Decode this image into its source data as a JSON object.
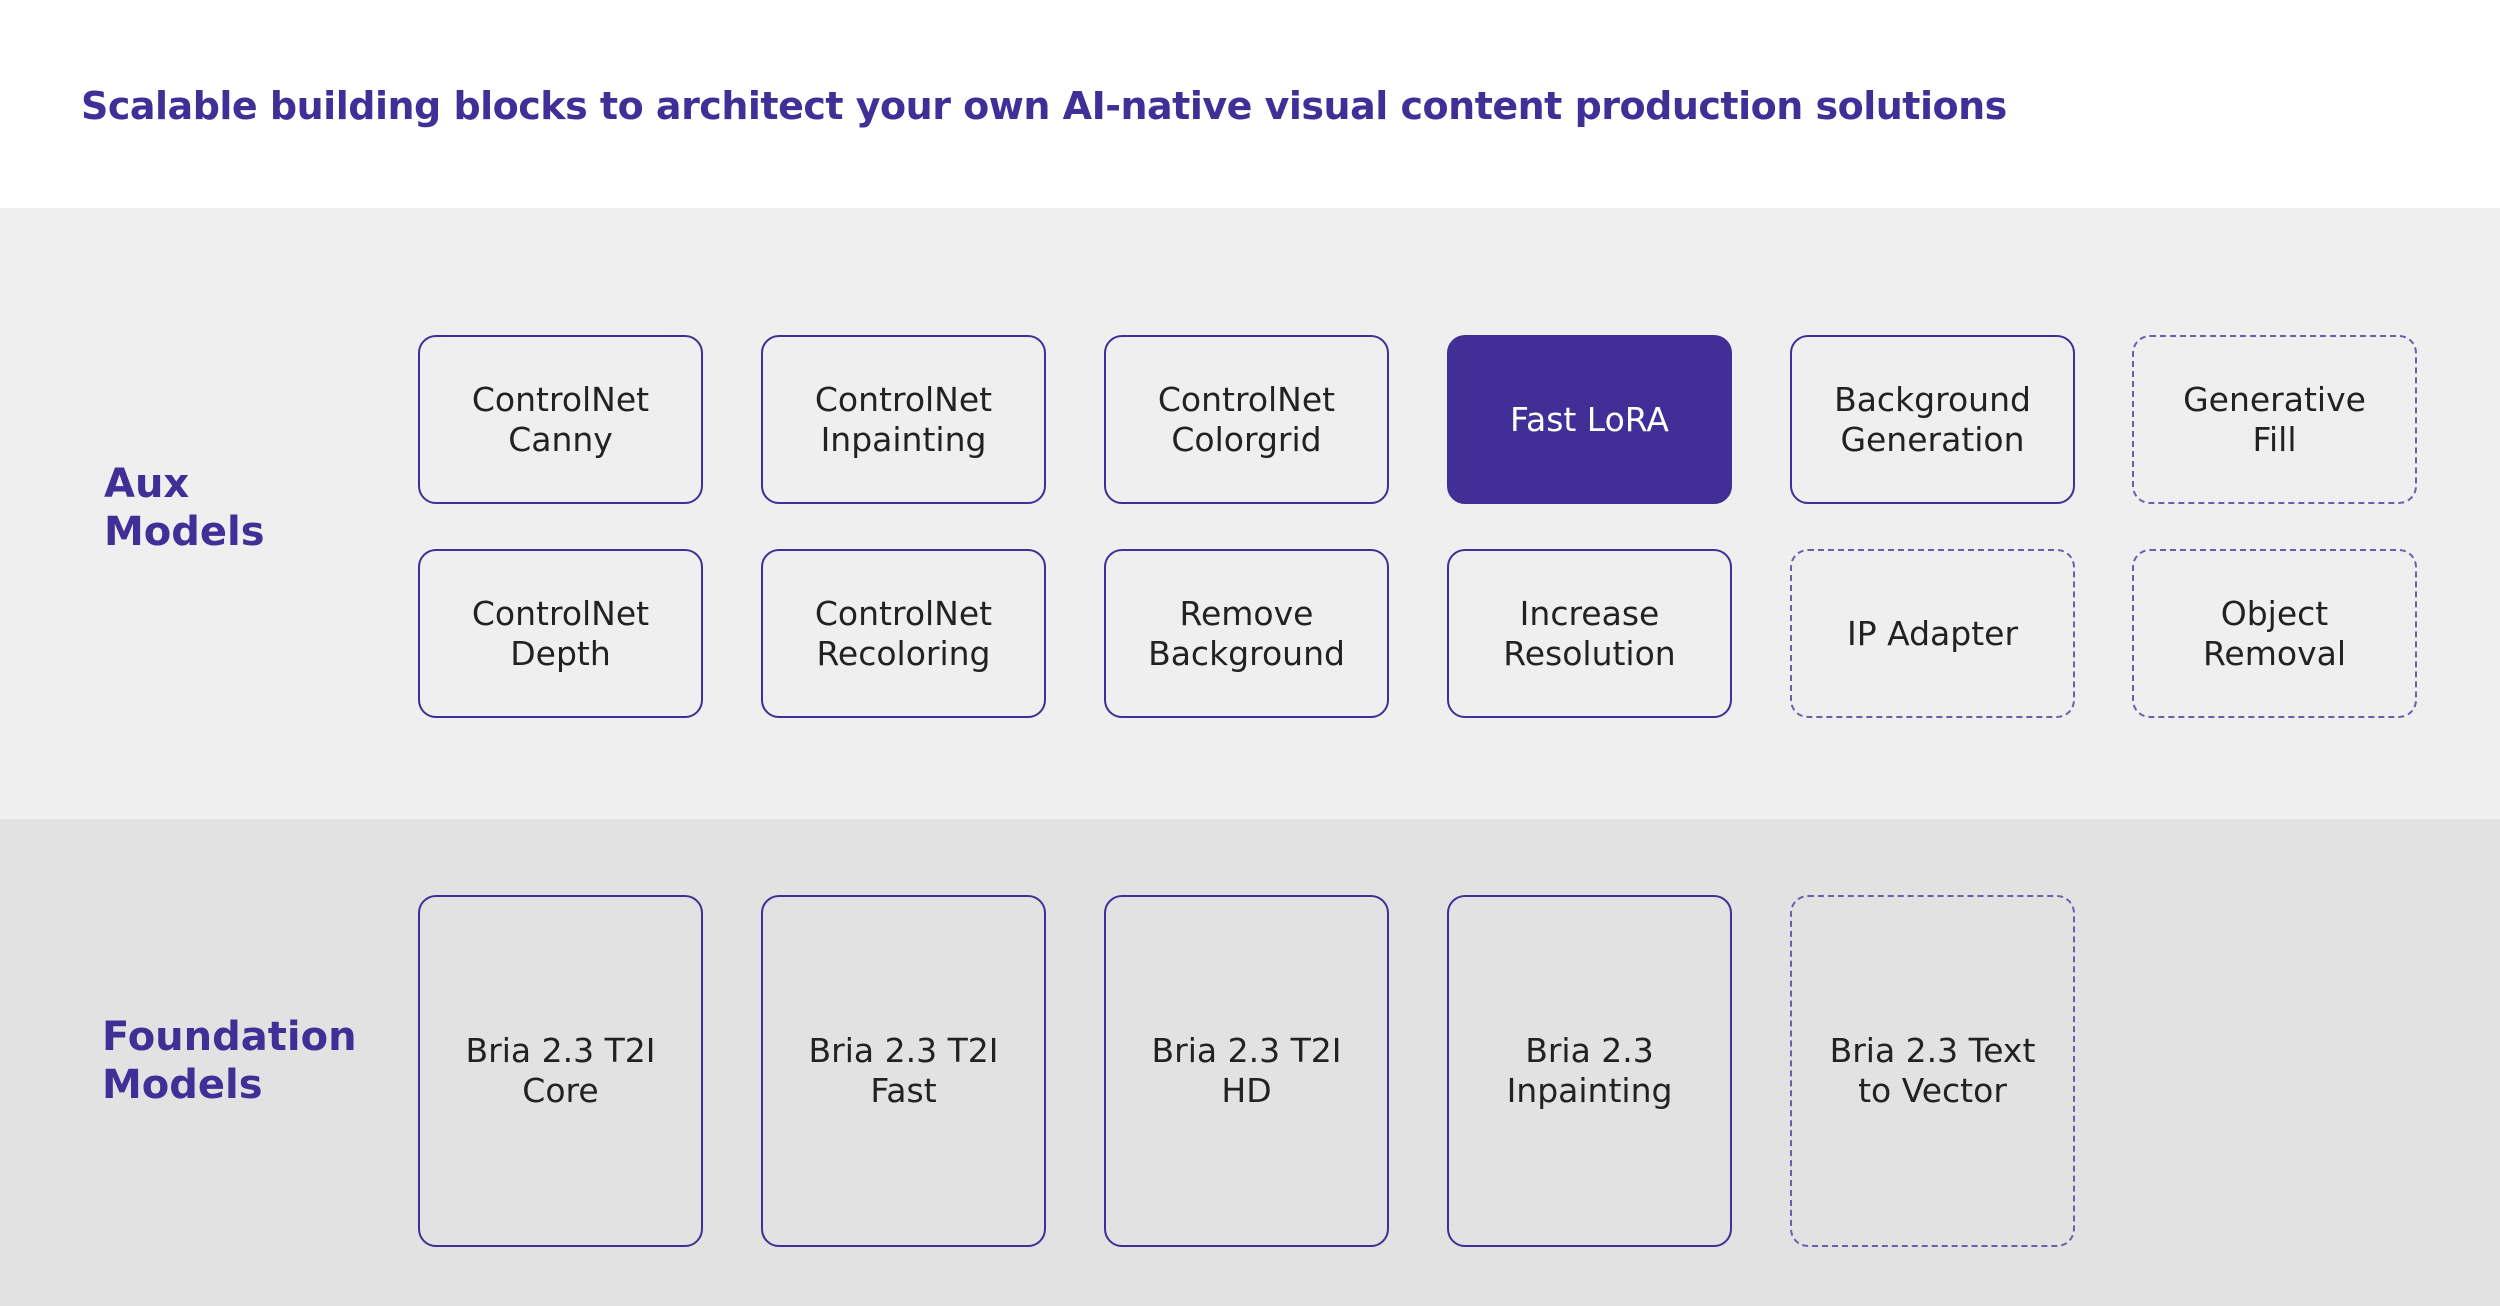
{
  "title": "Scalable building blocks to architect your own AI-native visual content production solutions",
  "colors": {
    "accent": "#412e96",
    "text": "#222222",
    "aux_band": "#efefef",
    "foundation_band": "#e2e2e2",
    "dashed_border": "#6a5fae"
  },
  "sections": {
    "aux": {
      "label": "Aux\nModels",
      "rows": [
        [
          {
            "label": "ControlNet\nCanny",
            "style": "solid"
          },
          {
            "label": "ControlNet\nInpainting",
            "style": "solid"
          },
          {
            "label": "ControlNet\nColorgrid",
            "style": "solid"
          },
          {
            "label": "Fast LoRA",
            "style": "filled"
          },
          {
            "label": "Background\nGeneration",
            "style": "solid"
          },
          {
            "label": "Generative\nFill",
            "style": "dashed"
          }
        ],
        [
          {
            "label": "ControlNet\nDepth",
            "style": "solid"
          },
          {
            "label": "ControlNet\nRecoloring",
            "style": "solid"
          },
          {
            "label": "Remove\nBackground",
            "style": "solid"
          },
          {
            "label": "Increase\nResolution",
            "style": "solid"
          },
          {
            "label": "IP Adapter",
            "style": "dashed"
          },
          {
            "label": "Object\nRemoval",
            "style": "dashed"
          }
        ]
      ]
    },
    "foundation": {
      "label": "Foundation\nModels",
      "items": [
        {
          "label": "Bria 2.3 T2I\nCore",
          "style": "solid"
        },
        {
          "label": "Bria 2.3 T2I\nFast",
          "style": "solid"
        },
        {
          "label": "Bria 2.3 T2I\nHD",
          "style": "solid"
        },
        {
          "label": "Bria 2.3\nInpainting",
          "style": "solid"
        },
        {
          "label": "Bria 2.3 Text\nto Vector",
          "style": "dashed"
        }
      ]
    }
  }
}
